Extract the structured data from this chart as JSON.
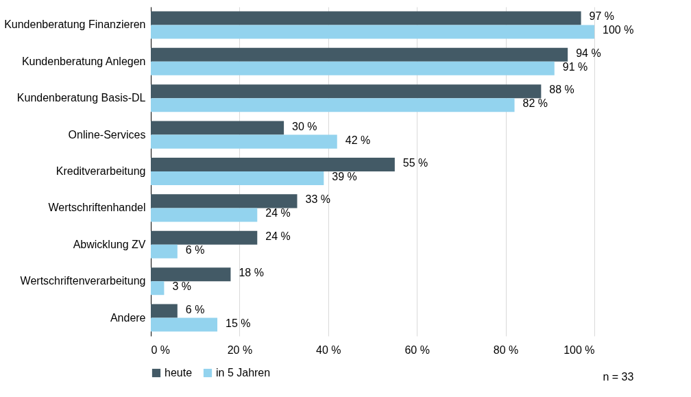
{
  "chart_data": {
    "type": "bar",
    "orientation": "horizontal",
    "categories": [
      "Kundenberatung Finanzieren",
      "Kundenberatung Anlegen",
      "Kundenberatung Basis-DL",
      "Online-Services",
      "Kreditverarbeitung",
      "Wertschriftenhandel",
      "Abwicklung ZV",
      "Wertschriftenverarbeitung",
      "Andere"
    ],
    "series": [
      {
        "name": "heute",
        "color": "#435a66",
        "values": [
          97,
          94,
          88,
          30,
          55,
          33,
          24,
          18,
          6
        ],
        "value_labels": [
          "97 %",
          "94 %",
          "88 %",
          "30 %",
          "55 %",
          "33 %",
          "24 %",
          "18 %",
          "6 %"
        ]
      },
      {
        "name": "in 5 Jahren",
        "color": "#93d3ee",
        "values": [
          100,
          91,
          82,
          42,
          39,
          24,
          6,
          3,
          15
        ],
        "value_labels": [
          "100 %",
          "91 %",
          "82 %",
          "42 %",
          "39 %",
          "24 %",
          "6 %",
          "3 %",
          "15 %"
        ]
      }
    ],
    "xlim": [
      0,
      100
    ],
    "xticks": [
      {
        "value": 0,
        "label": "0 %"
      },
      {
        "value": 20,
        "label": "20 %"
      },
      {
        "value": 40,
        "label": "40 %"
      },
      {
        "value": 60,
        "label": "60 %"
      },
      {
        "value": 80,
        "label": "80 %"
      },
      {
        "value": 100,
        "label": "100 %"
      }
    ],
    "grid": "x",
    "legend": "bottom",
    "annotations": [
      "n = 33"
    ]
  }
}
